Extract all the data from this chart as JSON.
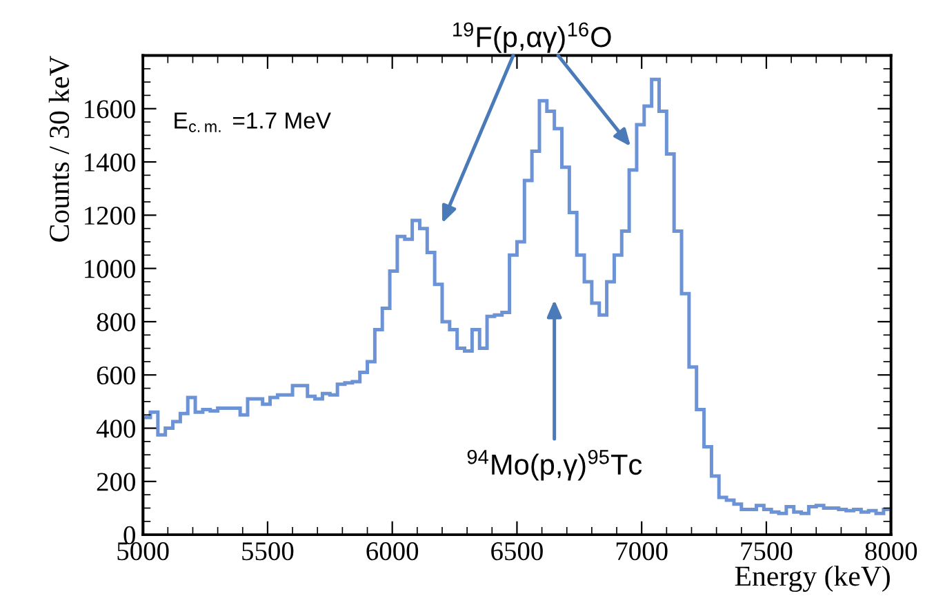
{
  "chart_data": {
    "type": "histogram",
    "xlabel": "Energy (keV)",
    "ylabel": "Counts / 30 keV",
    "bins": [
      5000,
      5030,
      5060,
      5090,
      5120,
      5150,
      5180,
      5210,
      5240,
      5270,
      5300,
      5330,
      5360,
      5390,
      5420,
      5450,
      5480,
      5510,
      5540,
      5570,
      5600,
      5630,
      5660,
      5690,
      5720,
      5750,
      5780,
      5810,
      5840,
      5870,
      5900,
      5930,
      5960,
      5990,
      6020,
      6050,
      6080,
      6110,
      6140,
      6170,
      6200,
      6230,
      6260,
      6290,
      6320,
      6350,
      6380,
      6410,
      6440,
      6470,
      6500,
      6530,
      6560,
      6590,
      6620,
      6650,
      6680,
      6710,
      6740,
      6770,
      6800,
      6830,
      6860,
      6890,
      6920,
      6950,
      6980,
      7010,
      7040,
      7070,
      7100,
      7130,
      7160,
      7190,
      7220,
      7250,
      7280,
      7310,
      7340,
      7370,
      7400,
      7430,
      7460,
      7490,
      7520,
      7550,
      7580,
      7610,
      7640,
      7670,
      7700,
      7730,
      7760,
      7790,
      7820,
      7850,
      7880,
      7910,
      7940,
      7970,
      8000
    ],
    "values": [
      440,
      460,
      375,
      400,
      425,
      455,
      515,
      460,
      470,
      465,
      475,
      475,
      475,
      450,
      510,
      510,
      490,
      515,
      525,
      525,
      560,
      560,
      520,
      510,
      530,
      525,
      565,
      570,
      575,
      610,
      650,
      770,
      850,
      990,
      1120,
      1110,
      1180,
      1150,
      1060,
      940,
      800,
      770,
      700,
      690,
      770,
      700,
      820,
      825,
      835,
      1050,
      1100,
      1330,
      1440,
      1630,
      1590,
      1525,
      1380,
      1210,
      1050,
      950,
      870,
      825,
      950,
      1050,
      1140,
      1370,
      1540,
      1610,
      1710,
      1590,
      1430,
      1140,
      905,
      630,
      470,
      330,
      220,
      140,
      130,
      115,
      95,
      95,
      110,
      95,
      85,
      80,
      105,
      85,
      80,
      105,
      110,
      100,
      100,
      95,
      90,
      95,
      85,
      90,
      80,
      95
    ],
    "color": "#6b93d6",
    "xlim": [
      5000,
      8000
    ],
    "ylim": [
      0,
      1800
    ],
    "xticks": [
      5000,
      5500,
      6000,
      6500,
      7000,
      7500,
      8000
    ],
    "yticks": [
      0,
      200,
      400,
      600,
      800,
      1000,
      1200,
      1400,
      1600
    ],
    "grid": false,
    "legend": false,
    "annotations": [
      "E$_{c.m.}$ =1.7 MeV",
      "$^{19}$F(p,αγ)$^{16}$O",
      "$^{94}$Mo(p,γ)$^{95}$Tc"
    ]
  }
}
